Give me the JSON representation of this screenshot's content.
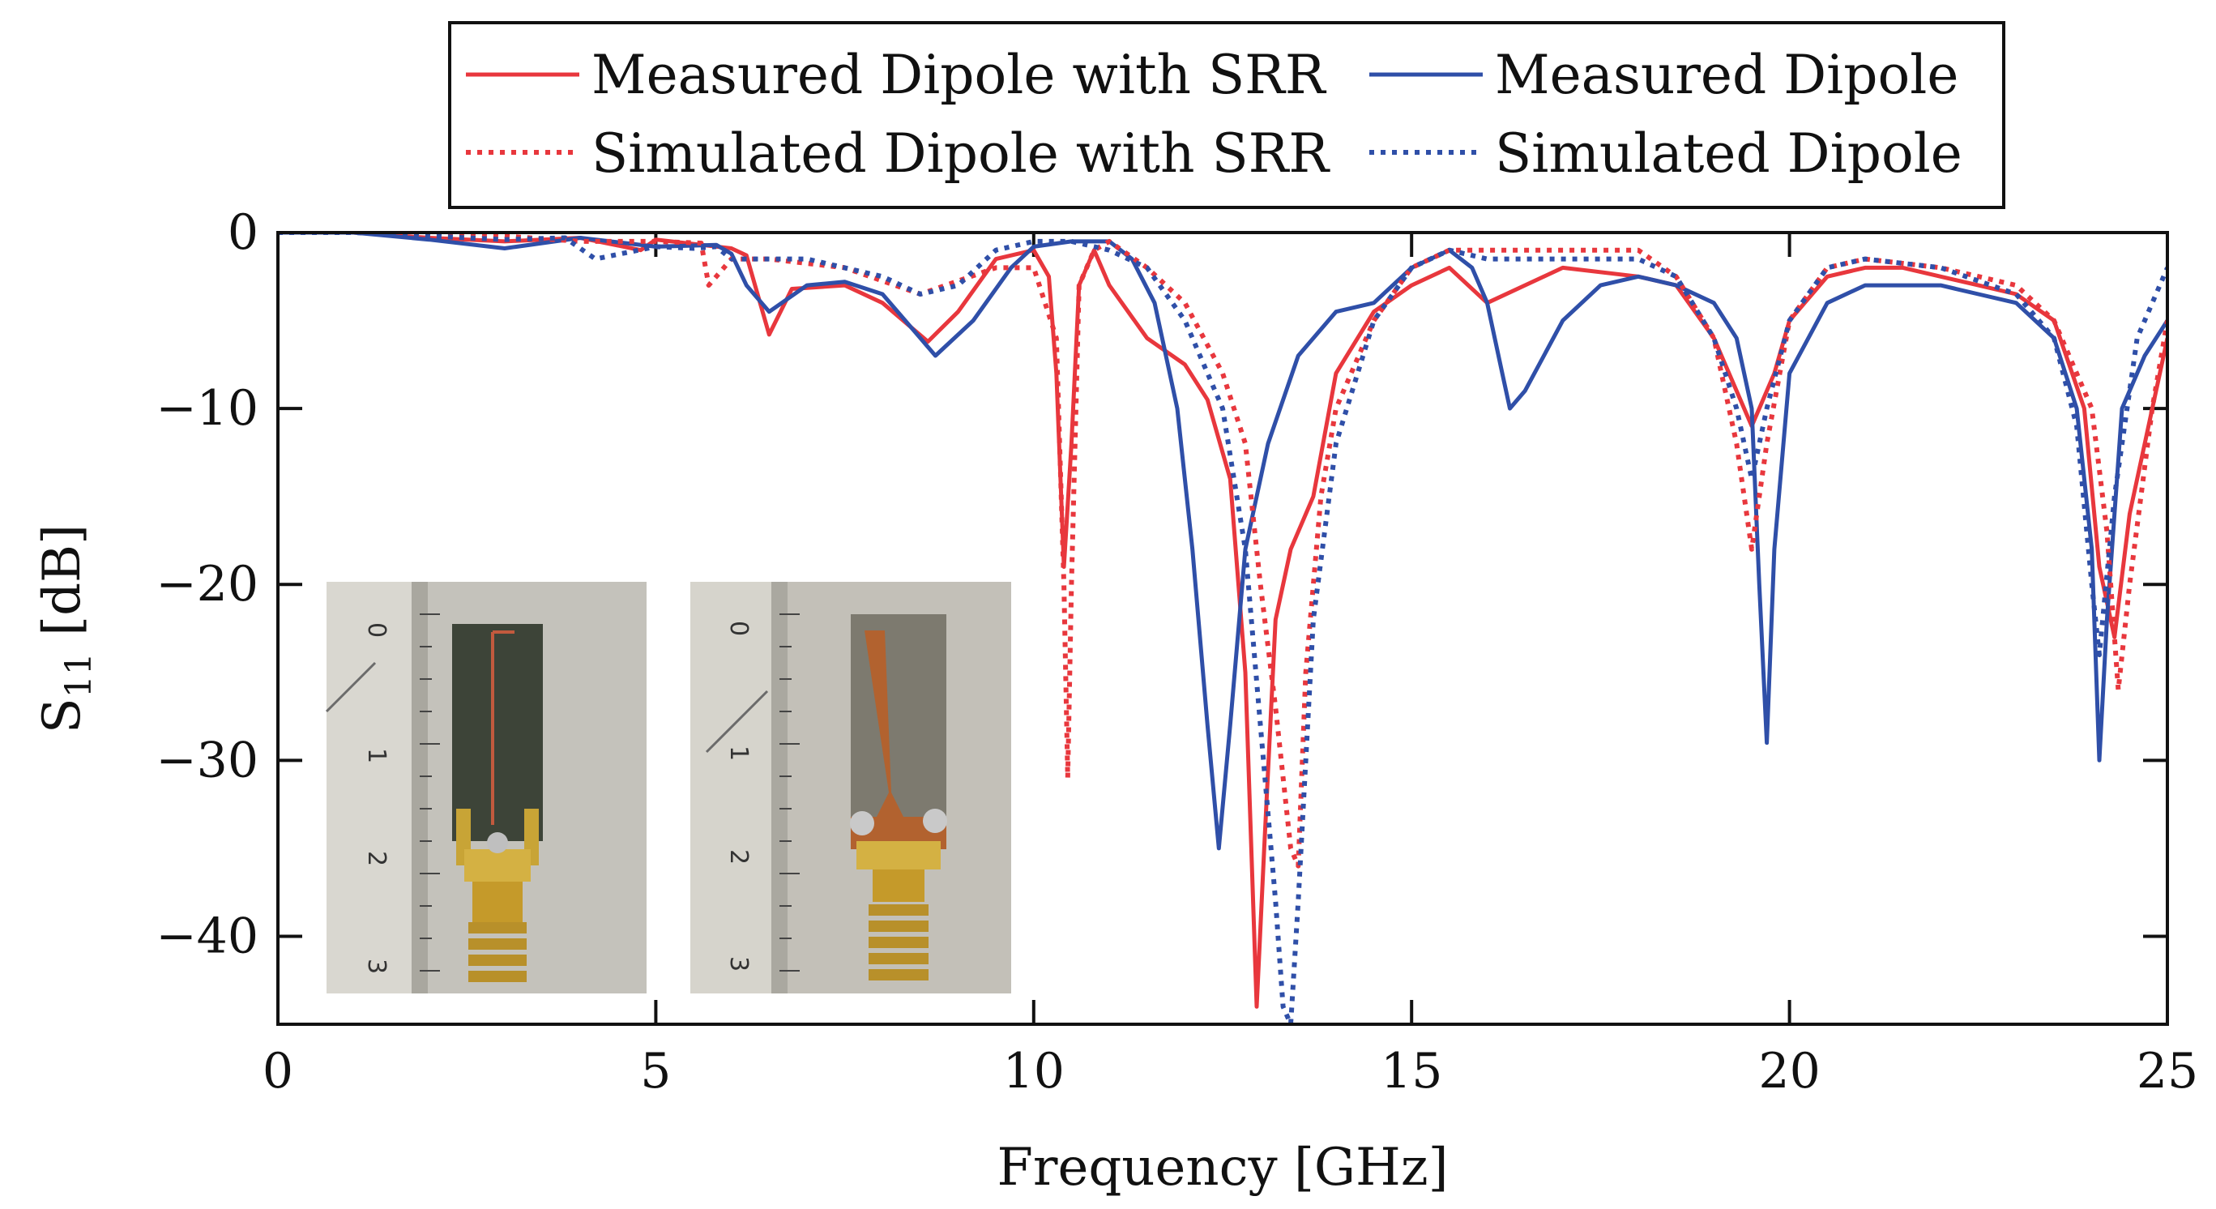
{
  "chart_data": {
    "type": "line",
    "title": "",
    "xlabel": "Frequency [GHz]",
    "ylabel_main": "S",
    "ylabel_sub": "11",
    "ylabel_unit": " [dB]",
    "xlim": [
      0,
      25
    ],
    "ylim": [
      -45,
      0
    ],
    "xticks": [
      0,
      5,
      10,
      15,
      20,
      25
    ],
    "xtick_labels": [
      "0",
      "5",
      "10",
      "15",
      "20",
      "25"
    ],
    "yticks": [
      0,
      -10,
      -20,
      -30,
      -40
    ],
    "ytick_labels": [
      "0",
      "−10",
      "−20",
      "−30",
      "−40"
    ],
    "grid": false,
    "legend_position": "top-center",
    "series": [
      {
        "name": "Measured Dipole with SRR",
        "color": "#e8373d",
        "dash": "solid",
        "x": [
          0,
          1,
          2,
          3,
          4,
          4.8,
          5,
          6,
          6.2,
          6.5,
          6.8,
          7.5,
          8,
          8.6,
          9,
          9.5,
          10,
          10.2,
          10.3,
          10.4,
          10.5,
          10.6,
          10.8,
          11,
          11.5,
          12,
          12.3,
          12.6,
          12.8,
          12.95,
          13.05,
          13.2,
          13.4,
          13.7,
          14,
          14.5,
          15,
          15.5,
          16,
          16.5,
          17,
          18,
          18.5,
          19,
          19.3,
          19.5,
          19.6,
          19.8,
          20,
          20.5,
          21,
          21.5,
          22,
          22.5,
          23,
          23.5,
          23.9,
          24.1,
          24.3,
          24.5,
          25
        ],
        "y": [
          0,
          0,
          -0.3,
          -0.5,
          -0.3,
          -1,
          -0.4,
          -0.9,
          -1.3,
          -5.8,
          -3.2,
          -3,
          -4,
          -6.2,
          -4.5,
          -1.5,
          -1,
          -2.5,
          -8,
          -19,
          -12,
          -3,
          -1,
          -3,
          -6,
          -7.5,
          -9.5,
          -14,
          -25,
          -44,
          -35,
          -22,
          -18,
          -15,
          -8,
          -4.5,
          -3,
          -2,
          -4,
          -3,
          -2,
          -2.5,
          -3,
          -6,
          -9,
          -11,
          -10,
          -8,
          -5,
          -2.5,
          -2,
          -2,
          -2.5,
          -3,
          -3.5,
          -5,
          -10,
          -19,
          -23,
          -16,
          -6
        ]
      },
      {
        "name": "Measured Dipole",
        "color": "#2f4fa8",
        "dash": "solid",
        "x": [
          0,
          1,
          2,
          3,
          4,
          5,
          5.8,
          6,
          6.2,
          6.5,
          7,
          7.5,
          8,
          8.5,
          8.7,
          9.2,
          9.7,
          10,
          10.5,
          11,
          11.3,
          11.6,
          11.9,
          12.1,
          12.3,
          12.45,
          12.6,
          12.8,
          13.1,
          13.5,
          14,
          14.5,
          15,
          15.5,
          15.8,
          16,
          16.2,
          16.3,
          16.5,
          17,
          17.5,
          18,
          18.5,
          19,
          19.3,
          19.5,
          19.6,
          19.7,
          19.8,
          20,
          20.5,
          21,
          22,
          22.5,
          23,
          23.5,
          23.8,
          24,
          24.1,
          24.2,
          24.4,
          24.7,
          25
        ],
        "y": [
          0,
          0,
          -0.4,
          -0.9,
          -0.3,
          -0.8,
          -0.7,
          -1.2,
          -3,
          -4.5,
          -3,
          -2.8,
          -3.5,
          -6,
          -7,
          -5,
          -2,
          -0.8,
          -0.5,
          -0.5,
          -1.5,
          -4,
          -10,
          -18,
          -28,
          -35,
          -28,
          -18,
          -12,
          -7,
          -4.5,
          -4,
          -2,
          -1,
          -2,
          -4,
          -8,
          -10,
          -9,
          -5,
          -3,
          -2.5,
          -3,
          -4,
          -6,
          -10,
          -20,
          -29,
          -18,
          -8,
          -4,
          -3,
          -3,
          -3.5,
          -4,
          -6,
          -10,
          -18,
          -30,
          -22,
          -10,
          -7,
          -5
        ]
      },
      {
        "name": "Simulated Dipole with SRR",
        "color": "#e8373d",
        "dash": "dotted",
        "x": [
          0,
          1,
          2,
          3,
          4,
          5,
          5.6,
          5.7,
          5.9,
          6,
          6.5,
          7.5,
          8.5,
          9.5,
          10,
          10.3,
          10.4,
          10.45,
          10.5,
          10.6,
          10.8,
          11,
          11.5,
          12,
          12.5,
          12.8,
          13,
          13.2,
          13.4,
          13.5,
          13.6,
          13.8,
          14,
          14.5,
          15,
          15.5,
          16,
          17,
          18,
          18.5,
          19,
          19.3,
          19.5,
          19.7,
          20,
          20.5,
          21,
          22,
          23,
          23.5,
          24,
          24.2,
          24.35,
          24.5,
          24.8,
          25
        ],
        "y": [
          0,
          0,
          0,
          -0.2,
          -0.5,
          -0.5,
          -0.6,
          -3,
          -2,
          -1.5,
          -1.5,
          -2,
          -3.5,
          -2,
          -2,
          -6,
          -20,
          -31,
          -20,
          -3,
          -1,
          -0.5,
          -2,
          -4,
          -8,
          -12,
          -20,
          -27,
          -35,
          -36,
          -25,
          -15,
          -10,
          -5,
          -2,
          -1,
          -1,
          -1,
          -1,
          -2.5,
          -6,
          -12,
          -18,
          -12,
          -5,
          -2,
          -1.5,
          -2,
          -3,
          -5,
          -10,
          -17,
          -26,
          -20,
          -10,
          -5
        ]
      },
      {
        "name": "Simulated Dipole",
        "color": "#2f4fa8",
        "dash": "dotted",
        "x": [
          0,
          1,
          2,
          3,
          3.8,
          4.2,
          5,
          5.5,
          5.8,
          6,
          7,
          8,
          8.5,
          9,
          9.5,
          10,
          10.5,
          11,
          11.5,
          12,
          12.5,
          12.8,
          13,
          13.2,
          13.3,
          13.4,
          13.5,
          13.7,
          14,
          14.5,
          15,
          15.5,
          16,
          17,
          18,
          18.5,
          19,
          19.3,
          19.5,
          19.7,
          20,
          20.5,
          21,
          22,
          23,
          23.5,
          23.8,
          24,
          24.1,
          24.3,
          24.6,
          25
        ],
        "y": [
          0,
          0,
          -0.2,
          -0.4,
          -0.3,
          -1.5,
          -0.8,
          -0.9,
          -0.8,
          -1.5,
          -1.5,
          -2.5,
          -3.5,
          -3,
          -1,
          -0.5,
          -0.5,
          -1,
          -2,
          -5,
          -10,
          -18,
          -28,
          -38,
          -44,
          -45,
          -38,
          -22,
          -12,
          -5,
          -2,
          -1,
          -1.5,
          -1.5,
          -1.5,
          -2.5,
          -6,
          -10,
          -14,
          -10,
          -5,
          -2,
          -1.5,
          -2,
          -3.5,
          -6,
          -11,
          -20,
          -24,
          -15,
          -6,
          -2
        ]
      }
    ]
  },
  "legend": {
    "measured_srr": "Measured Dipole with SRR",
    "measured_dipole": "Measured Dipole",
    "simulated_srr": "Simulated Dipole with SRR",
    "simulated_dipole": "Simulated Dipole"
  },
  "photo_insets": {
    "left": {
      "ruler_marks": [
        "0",
        "1",
        "2",
        "3"
      ]
    },
    "right": {
      "ruler_marks": [
        "0",
        "1",
        "2",
        "3"
      ]
    }
  },
  "colors": {
    "red": "#e8373d",
    "blue": "#2f4fa8",
    "axis": "#111111"
  }
}
